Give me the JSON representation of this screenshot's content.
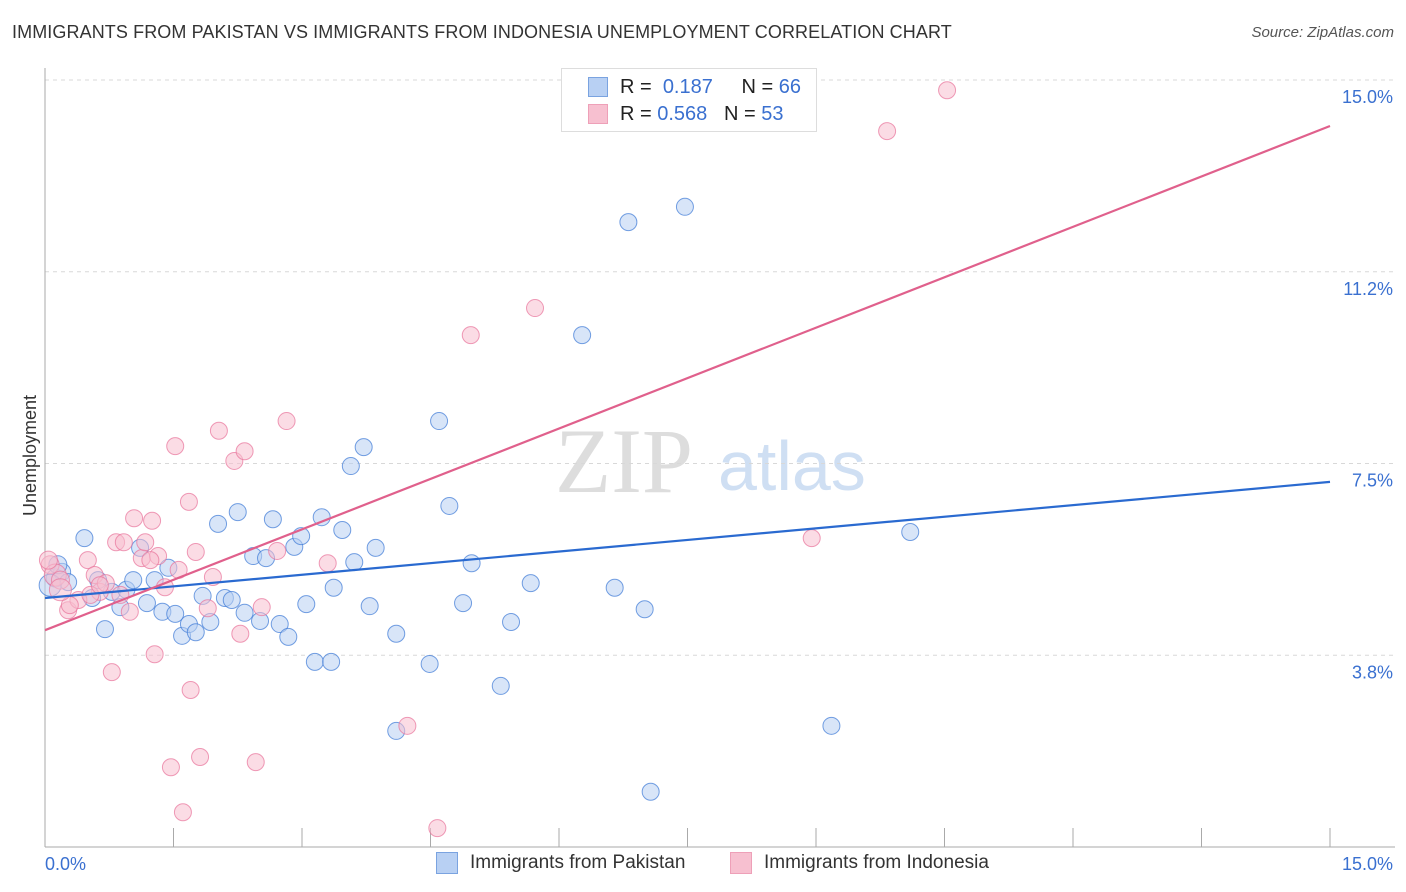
{
  "title": "IMMIGRANTS FROM PAKISTAN VS IMMIGRANTS FROM INDONESIA UNEMPLOYMENT CORRELATION CHART",
  "source": "Source: ZipAtlas.com",
  "watermark": "ZIPatlas",
  "legend": {
    "r_label": "R =",
    "n_label": "N =",
    "pakistan": {
      "r": "0.187",
      "n": "66"
    },
    "indonesia": {
      "r": "0.568",
      "n": "53"
    }
  },
  "colors": {
    "pakistan": "#3a78d6",
    "indonesia": "#e8729a",
    "pakistan_fill": "#b8d0f3",
    "indonesia_fill": "#f7c0d0"
  },
  "chart_data": {
    "type": "scatter",
    "title": "IMMIGRANTS FROM PAKISTAN VS IMMIGRANTS FROM INDONESIA UNEMPLOYMENT CORRELATION CHART",
    "xlabel": "",
    "ylabel": "Unemployment",
    "xlim": [
      0,
      15
    ],
    "ylim": [
      0,
      15
    ],
    "x_tick_labels": [
      "0.0%",
      "15.0%"
    ],
    "y_ticks": [
      3.75,
      7.5,
      11.25,
      15
    ],
    "y_tick_labels": [
      "3.8%",
      "7.5%",
      "11.2%",
      "15.0%"
    ],
    "grid": true,
    "legend_position": "top-center",
    "series": [
      {
        "name": "Immigrants from Pakistan",
        "trend": [
          [
            0,
            4.87
          ],
          [
            15,
            7.14
          ]
        ],
        "points": [
          [
            0.12,
            5.26
          ],
          [
            0.2,
            5.38
          ],
          [
            0.27,
            5.18
          ],
          [
            0.46,
            6.04
          ],
          [
            0.55,
            4.87
          ],
          [
            0.62,
            5.22
          ],
          [
            0.7,
            4.26
          ],
          [
            0.78,
            4.99
          ],
          [
            0.88,
            4.69
          ],
          [
            0.95,
            5.03
          ],
          [
            1.03,
            5.22
          ],
          [
            1.11,
            5.85
          ],
          [
            1.19,
            4.77
          ],
          [
            1.28,
            5.22
          ],
          [
            1.37,
            4.6
          ],
          [
            1.44,
            5.46
          ],
          [
            1.52,
            4.56
          ],
          [
            1.6,
            4.13
          ],
          [
            1.68,
            4.36
          ],
          [
            1.76,
            4.2
          ],
          [
            1.84,
            4.91
          ],
          [
            1.93,
            4.4
          ],
          [
            2.02,
            6.32
          ],
          [
            2.1,
            4.87
          ],
          [
            2.18,
            4.83
          ],
          [
            2.25,
            6.55
          ],
          [
            2.33,
            4.58
          ],
          [
            2.43,
            5.69
          ],
          [
            2.51,
            4.42
          ],
          [
            2.58,
            5.65
          ],
          [
            2.66,
            6.41
          ],
          [
            2.74,
            4.36
          ],
          [
            2.84,
            4.11
          ],
          [
            2.91,
            5.87
          ],
          [
            2.99,
            6.08
          ],
          [
            3.05,
            4.75
          ],
          [
            3.15,
            3.62
          ],
          [
            3.23,
            6.45
          ],
          [
            3.34,
            3.62
          ],
          [
            3.37,
            5.07
          ],
          [
            3.47,
            6.2
          ],
          [
            3.57,
            7.45
          ],
          [
            3.61,
            5.57
          ],
          [
            3.72,
            7.82
          ],
          [
            3.79,
            4.71
          ],
          [
            3.86,
            5.85
          ],
          [
            4.1,
            4.17
          ],
          [
            4.1,
            2.27
          ],
          [
            4.49,
            3.58
          ],
          [
            4.6,
            8.33
          ],
          [
            4.72,
            6.67
          ],
          [
            4.88,
            4.77
          ],
          [
            4.98,
            5.55
          ],
          [
            5.32,
            3.15
          ],
          [
            5.44,
            4.4
          ],
          [
            5.67,
            5.16
          ],
          [
            6.27,
            10.01
          ],
          [
            6.65,
            5.07
          ],
          [
            6.81,
            12.22
          ],
          [
            7.0,
            4.65
          ],
          [
            7.07,
            1.08
          ],
          [
            7.47,
            12.52
          ],
          [
            9.18,
            2.37
          ],
          [
            10.1,
            6.16
          ],
          [
            0.15,
            5.52
          ],
          [
            0.06,
            5.12
          ]
        ]
      },
      {
        "name": "Immigrants from Indonesia",
        "trend": [
          [
            0,
            4.24
          ],
          [
            15,
            14.1
          ]
        ],
        "points": [
          [
            0.06,
            5.52
          ],
          [
            0.12,
            5.32
          ],
          [
            0.18,
            5.22
          ],
          [
            0.27,
            4.63
          ],
          [
            0.39,
            4.83
          ],
          [
            0.5,
            5.61
          ],
          [
            0.58,
            5.32
          ],
          [
            0.64,
            4.99
          ],
          [
            0.71,
            5.16
          ],
          [
            0.78,
            3.42
          ],
          [
            0.83,
            5.96
          ],
          [
            0.92,
            5.96
          ],
          [
            0.99,
            4.6
          ],
          [
            1.04,
            6.43
          ],
          [
            1.13,
            5.65
          ],
          [
            1.17,
            5.96
          ],
          [
            1.25,
            6.38
          ],
          [
            1.28,
            3.77
          ],
          [
            1.32,
            5.69
          ],
          [
            1.4,
            5.08
          ],
          [
            1.47,
            1.56
          ],
          [
            1.52,
            7.84
          ],
          [
            1.56,
            5.42
          ],
          [
            1.61,
            0.68
          ],
          [
            1.68,
            6.75
          ],
          [
            1.7,
            3.07
          ],
          [
            1.76,
            5.77
          ],
          [
            1.81,
            1.76
          ],
          [
            1.9,
            4.67
          ],
          [
            1.96,
            5.28
          ],
          [
            2.03,
            8.14
          ],
          [
            2.21,
            7.55
          ],
          [
            2.28,
            4.17
          ],
          [
            2.33,
            7.74
          ],
          [
            2.46,
            1.66
          ],
          [
            2.53,
            4.69
          ],
          [
            2.71,
            5.79
          ],
          [
            2.82,
            8.33
          ],
          [
            3.3,
            5.55
          ],
          [
            4.23,
            2.37
          ],
          [
            4.58,
            0.37
          ],
          [
            4.97,
            10.01
          ],
          [
            5.72,
            10.54
          ],
          [
            8.95,
            6.04
          ],
          [
            9.83,
            14.0
          ],
          [
            10.53,
            14.8
          ],
          [
            0.29,
            4.73
          ],
          [
            0.53,
            4.93
          ],
          [
            0.64,
            5.12
          ],
          [
            0.88,
            4.93
          ],
          [
            0.04,
            5.61
          ],
          [
            0.18,
            5.03
          ],
          [
            1.23,
            5.61
          ]
        ]
      }
    ]
  }
}
